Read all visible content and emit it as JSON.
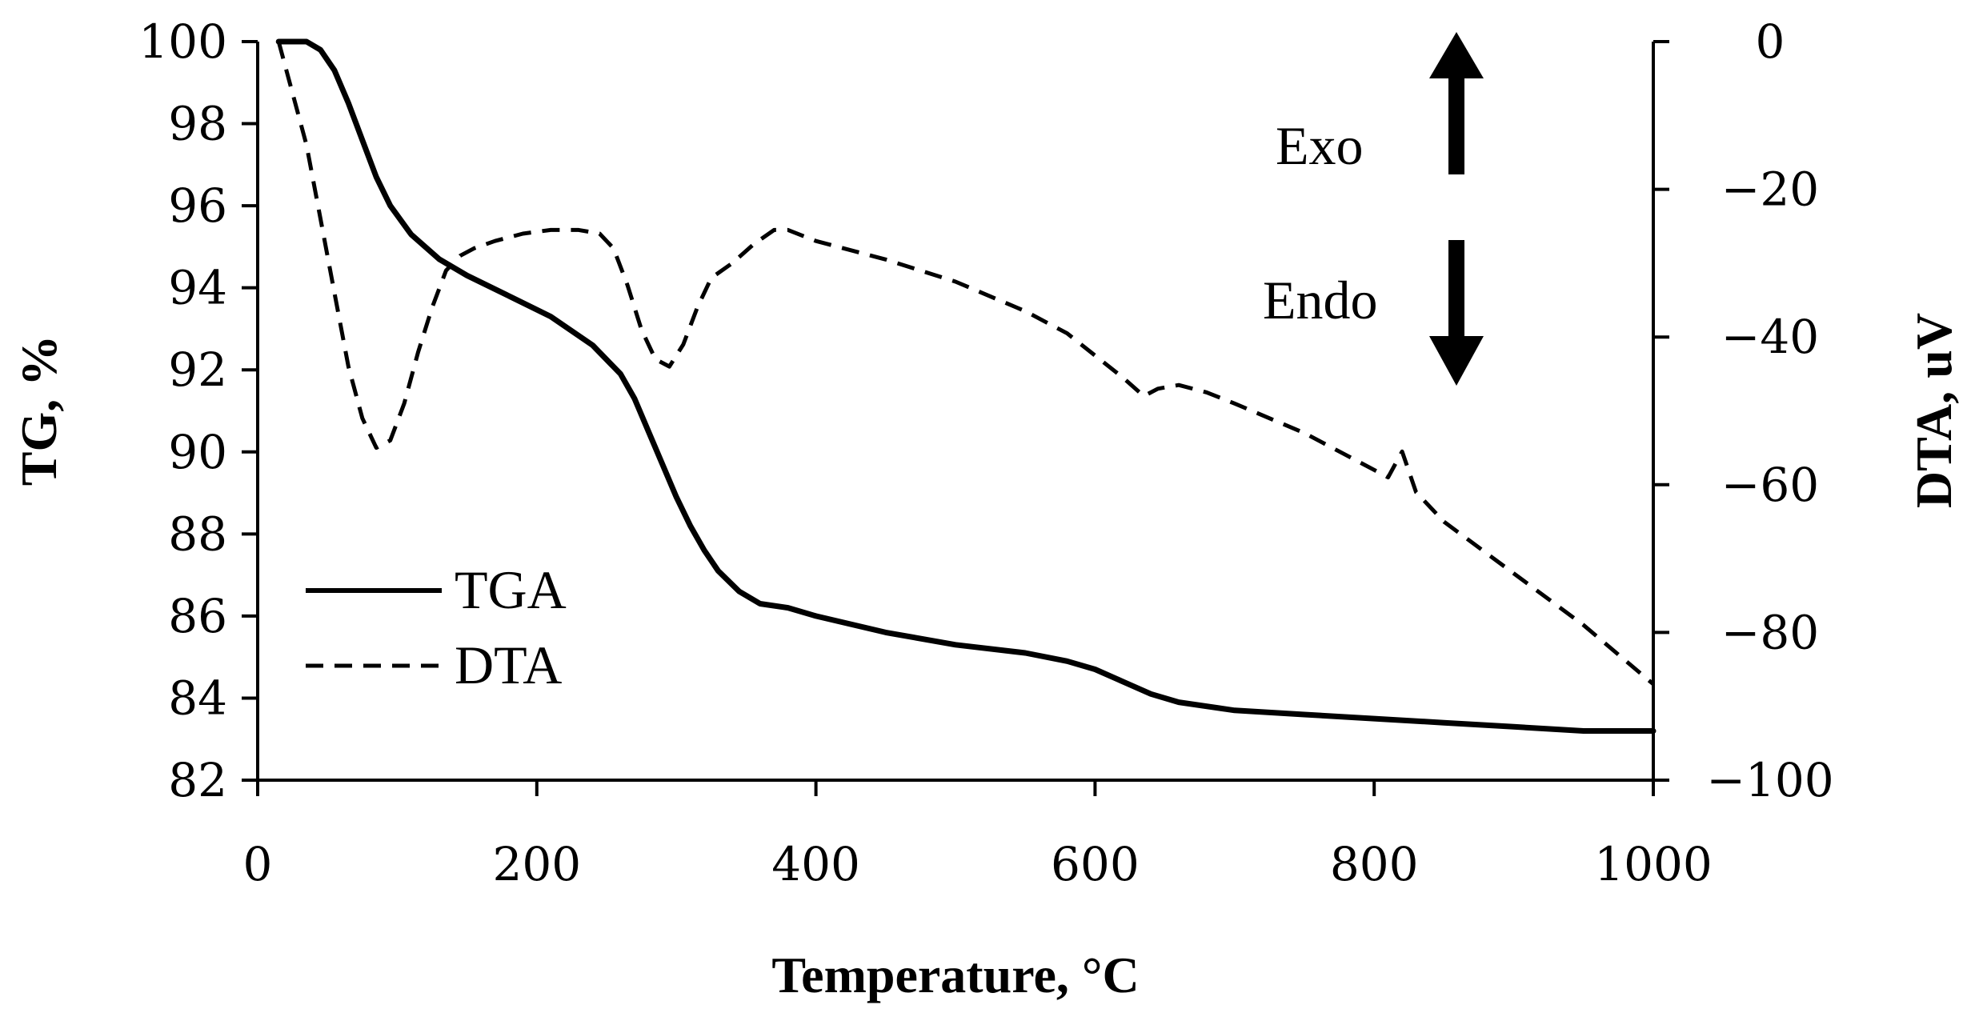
{
  "chart_data": {
    "type": "line",
    "title": "",
    "xlabel": "Temperature, °C",
    "ylabel": "TG, %",
    "y2label": "DTA, uV",
    "xlim": [
      0,
      1000
    ],
    "ylim": [
      82,
      100
    ],
    "y2lim": [
      -100,
      0
    ],
    "x_ticks": [
      "0",
      "200",
      "400",
      "600",
      "800",
      "1000"
    ],
    "y_ticks": [
      "82",
      "84",
      "86",
      "88",
      "90",
      "92",
      "94",
      "96",
      "98",
      "100"
    ],
    "y2_ticks": [
      "−100",
      "−80",
      "−60",
      "−40",
      "−20",
      "0"
    ],
    "legend": {
      "position": "bottom-left",
      "entries": [
        {
          "name": "TGA",
          "style": "solid"
        },
        {
          "name": "DTA",
          "style": "dashed"
        }
      ]
    },
    "annotations": {
      "exo_label": "Exo",
      "endo_label": "Endo"
    },
    "series": [
      {
        "name": "TGA",
        "axis": "left",
        "style": "solid",
        "x": [
          15,
          25,
          35,
          45,
          55,
          65,
          75,
          85,
          95,
          110,
          130,
          150,
          180,
          210,
          240,
          260,
          270,
          280,
          290,
          300,
          310,
          320,
          330,
          345,
          360,
          380,
          400,
          450,
          500,
          550,
          580,
          600,
          620,
          640,
          660,
          700,
          750,
          800,
          850,
          900,
          950,
          1000
        ],
        "y": [
          100,
          100,
          100,
          99.8,
          99.3,
          98.5,
          97.6,
          96.7,
          96.0,
          95.3,
          94.7,
          94.3,
          93.8,
          93.3,
          92.6,
          91.9,
          91.3,
          90.5,
          89.7,
          88.9,
          88.2,
          87.6,
          87.1,
          86.6,
          86.3,
          86.2,
          86.0,
          85.6,
          85.3,
          85.1,
          84.9,
          84.7,
          84.4,
          84.1,
          83.9,
          83.7,
          83.6,
          83.5,
          83.4,
          83.3,
          83.2,
          83.2
        ]
      },
      {
        "name": "DTA",
        "axis": "right",
        "style": "dashed",
        "x": [
          15,
          25,
          35,
          45,
          55,
          65,
          75,
          85,
          95,
          105,
          115,
          125,
          135,
          145,
          155,
          170,
          190,
          210,
          230,
          245,
          255,
          265,
          275,
          285,
          295,
          305,
          315,
          325,
          340,
          355,
          370,
          380,
          400,
          450,
          500,
          550,
          580,
          600,
          620,
          635,
          645,
          660,
          680,
          700,
          750,
          800,
          810,
          820,
          830,
          850,
          900,
          950,
          1000
        ],
        "y": [
          0,
          -7,
          -14,
          -24,
          -34,
          -44,
          -51,
          -55,
          -54,
          -49,
          -42,
          -36,
          -31,
          -29,
          -28,
          -27,
          -26,
          -25.5,
          -25.5,
          -26,
          -28,
          -33,
          -39,
          -43,
          -44,
          -41,
          -36,
          -32,
          -30,
          -27.5,
          -25.5,
          -25.5,
          -27,
          -29.5,
          -32.5,
          -36.5,
          -39.5,
          -42.5,
          -45.5,
          -48,
          -47,
          -46.5,
          -47.5,
          -49,
          -53,
          -58,
          -59,
          -55.5,
          -61,
          -65,
          -72,
          -79,
          -87
        ]
      }
    ]
  }
}
